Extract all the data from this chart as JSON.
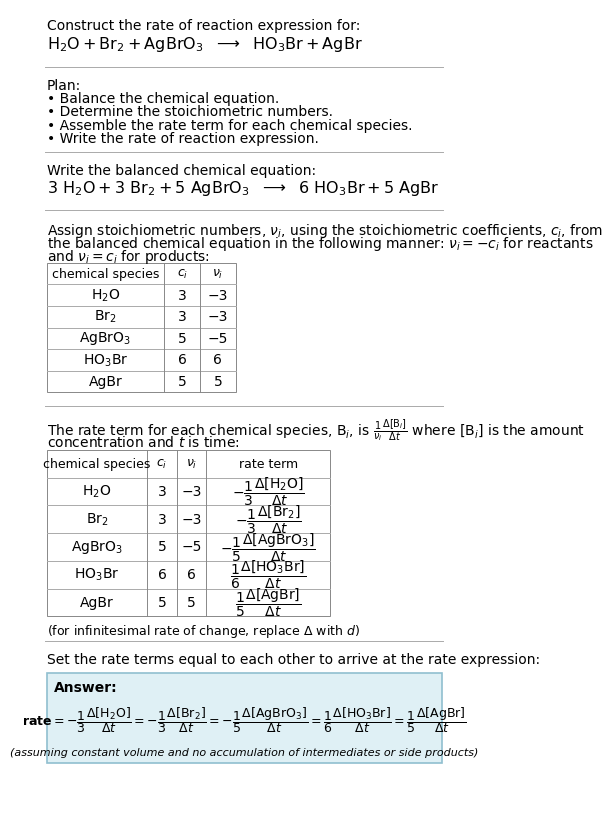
{
  "bg_color": "#ffffff",
  "title_line1": "Construct the rate of reaction expression for:",
  "plan_header": "Plan:",
  "plan_items": [
    "• Balance the chemical equation.",
    "• Determine the stoichiometric numbers.",
    "• Assemble the rate term for each chemical species.",
    "• Write the rate of reaction expression."
  ],
  "balanced_header": "Write the balanced chemical equation:",
  "stoich_intro1": "Assign stoichiometric numbers, $\\nu_i$, using the stoichiometric coefficients, $c_i$, from",
  "stoich_intro2": "the balanced chemical equation in the following manner: $\\nu_i = -c_i$ for reactants",
  "stoich_intro3": "and $\\nu_i = c_i$ for products:",
  "table1_data": [
    [
      "H$_2$O",
      "3",
      "−3"
    ],
    [
      "Br$_2$",
      "3",
      "−3"
    ],
    [
      "AgBrO$_3$",
      "5",
      "−5"
    ],
    [
      "HO$_3$Br",
      "6",
      "6"
    ],
    [
      "AgBr",
      "5",
      "5"
    ]
  ],
  "rate_intro1": "The rate term for each chemical species, B$_i$, is $\\frac{1}{\\nu_i}\\frac{\\Delta[\\mathrm{B}_i]}{\\Delta t}$ where [B$_i$] is the amount",
  "rate_intro2": "concentration and $t$ is time:",
  "table2_species": [
    "H$_2$O",
    "Br$_2$",
    "AgBrO$_3$",
    "HO$_3$Br",
    "AgBr"
  ],
  "table2_ci": [
    "3",
    "3",
    "5",
    "6",
    "5"
  ],
  "table2_ni": [
    "−3",
    "−3",
    "−5",
    "6",
    "5"
  ],
  "infinitesimal_note": "(for infinitesimal rate of change, replace Δ with $d$)",
  "set_equal_header": "Set the rate terms equal to each other to arrive at the rate expression:",
  "answer_box_color": "#dff0f5",
  "answer_border_color": "#90bfcf",
  "answer_label": "Answer:"
}
